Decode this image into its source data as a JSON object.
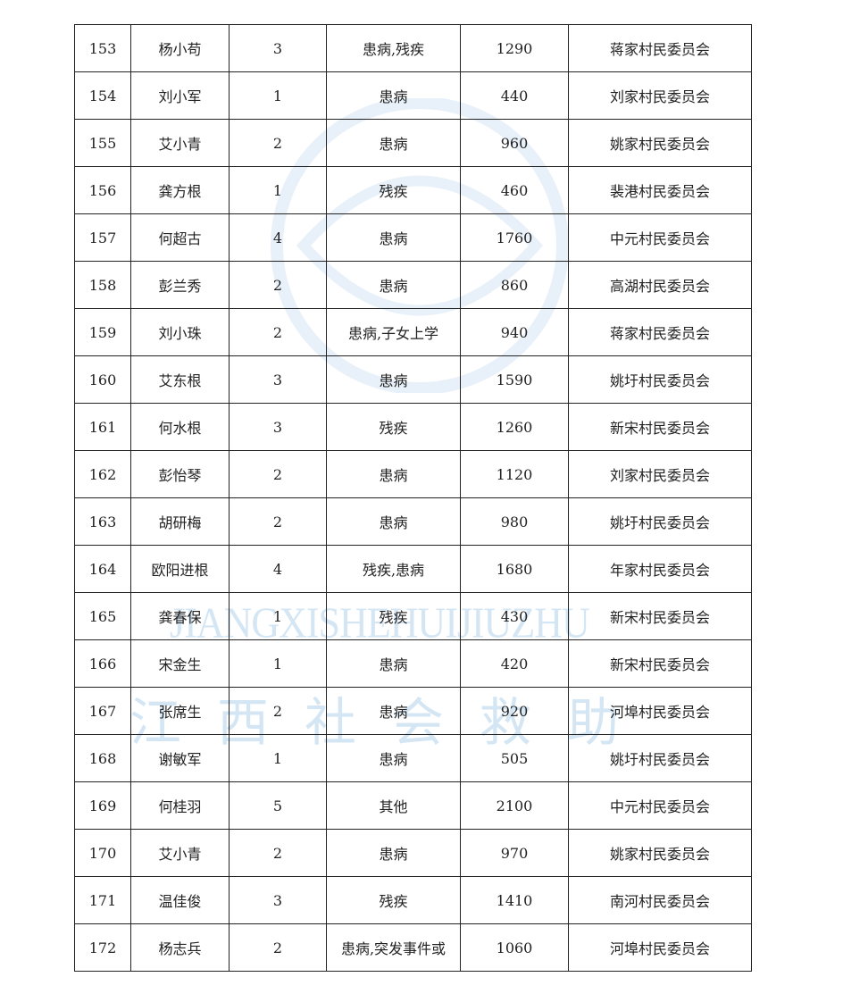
{
  "watermark": {
    "latin": "JIANGXISHEHUIJIUZHU",
    "chinese": "江西社会救助",
    "color": "#d4e6f4"
  },
  "table": {
    "rows": [
      [
        "153",
        "杨小苟",
        "3",
        "患病,残疾",
        "1290",
        "蒋家村民委员会"
      ],
      [
        "154",
        "刘小军",
        "1",
        "患病",
        "440",
        "刘家村民委员会"
      ],
      [
        "155",
        "艾小青",
        "2",
        "患病",
        "960",
        "姚家村民委员会"
      ],
      [
        "156",
        "龚方根",
        "1",
        "残疾",
        "460",
        "裴港村民委员会"
      ],
      [
        "157",
        "何超古",
        "4",
        "患病",
        "1760",
        "中元村民委员会"
      ],
      [
        "158",
        "彭兰秀",
        "2",
        "患病",
        "860",
        "高湖村民委员会"
      ],
      [
        "159",
        "刘小珠",
        "2",
        "患病,子女上学",
        "940",
        "蒋家村民委员会"
      ],
      [
        "160",
        "艾东根",
        "3",
        "患病",
        "1590",
        "姚圩村民委员会"
      ],
      [
        "161",
        "何水根",
        "3",
        "残疾",
        "1260",
        "新宋村民委员会"
      ],
      [
        "162",
        "彭怡琴",
        "2",
        "患病",
        "1120",
        "刘家村民委员会"
      ],
      [
        "163",
        "胡研梅",
        "2",
        "患病",
        "980",
        "姚圩村民委员会"
      ],
      [
        "164",
        "欧阳进根",
        "4",
        "残疾,患病",
        "1680",
        "年家村民委员会"
      ],
      [
        "165",
        "龚春保",
        "1",
        "残疾",
        "430",
        "新宋村民委员会"
      ],
      [
        "166",
        "宋金生",
        "1",
        "患病",
        "420",
        "新宋村民委员会"
      ],
      [
        "167",
        "张席生",
        "2",
        "患病",
        "920",
        "河埠村民委员会"
      ],
      [
        "168",
        "谢敏军",
        "1",
        "患病",
        "505",
        "姚圩村民委员会"
      ],
      [
        "169",
        "何桂羽",
        "5",
        "其他",
        "2100",
        "中元村民委员会"
      ],
      [
        "170",
        "艾小青",
        "2",
        "患病",
        "970",
        "姚家村民委员会"
      ],
      [
        "171",
        "温佳俊",
        "3",
        "残疾",
        "1410",
        "南河村民委员会"
      ],
      [
        "172",
        "杨志兵",
        "2",
        "患病,突发事件或",
        "1060",
        "河埠村民委员会"
      ]
    ]
  }
}
